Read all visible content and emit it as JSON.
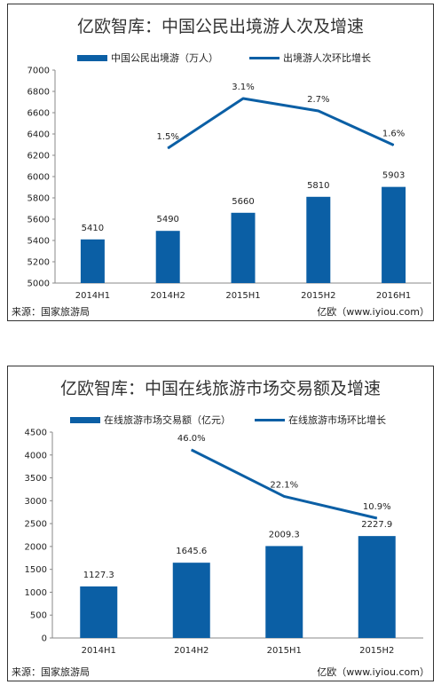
{
  "colors": {
    "bar": "#0b5fa5",
    "line": "#0b5fa5",
    "axis": "#888888"
  },
  "charts": [
    {
      "title": "亿欧智库：中国公民出境游人次及增速",
      "legend_bar": "中国公民出境游（万人）",
      "legend_line": "出境游人次环比增长",
      "source": "来源：国家旅游局",
      "credit": "亿欧（www.iyiou.com）"
    },
    {
      "title": "亿欧智库：中国在线旅游市场交易额及增速",
      "legend_bar": "在线旅游市场交易额（亿元）",
      "legend_line": "在线旅游市场环比增长",
      "source": "来源：国家旅游局",
      "credit": "亿欧（www.iyiou.com）"
    }
  ],
  "chart_data": [
    {
      "type": "bar",
      "title": "亿欧智库：中国公民出境游人次及增速",
      "categories": [
        "2014H1",
        "2014H2",
        "2015H1",
        "2015H2",
        "2016H1"
      ],
      "series": [
        {
          "name": "中国公民出境游（万人）",
          "type": "bar",
          "values": [
            5410,
            5490,
            5660,
            5810,
            5903
          ],
          "labels": [
            "5410",
            "5490",
            "5660",
            "5810",
            "5903"
          ]
        },
        {
          "name": "出境游人次环比增长",
          "type": "line",
          "values": [
            null,
            1.5,
            3.1,
            2.7,
            1.6
          ],
          "labels": [
            "",
            "1.5%",
            "3.1%",
            "2.7%",
            "1.6%"
          ]
        }
      ],
      "ylim": [
        5000,
        7000
      ],
      "yticks": [
        "5000",
        "5200",
        "5400",
        "5600",
        "5800",
        "6000",
        "6200",
        "6400",
        "6600",
        "6800",
        "7000"
      ],
      "legend_position": "top",
      "grid": false
    },
    {
      "type": "bar",
      "title": "亿欧智库：中国在线旅游市场交易额及增速",
      "categories": [
        "2014H1",
        "2014H2",
        "2015H1",
        "2015H2"
      ],
      "series": [
        {
          "name": "在线旅游市场交易额（亿元）",
          "type": "bar",
          "values": [
            1127.3,
            1645.6,
            2009.3,
            2227.9
          ],
          "labels": [
            "1127.3",
            "1645.6",
            "2009.3",
            "2227.9"
          ]
        },
        {
          "name": "在线旅游市场环比增长",
          "type": "line",
          "values": [
            null,
            46.0,
            22.1,
            10.9
          ],
          "labels": [
            "",
            "46.0%",
            "22.1%",
            "10.9%"
          ]
        }
      ],
      "ylim": [
        0,
        4500
      ],
      "yticks": [
        "0",
        "500",
        "1000",
        "1500",
        "2000",
        "2500",
        "3000",
        "3500",
        "4000",
        "4500"
      ],
      "legend_position": "top",
      "grid": false
    }
  ]
}
